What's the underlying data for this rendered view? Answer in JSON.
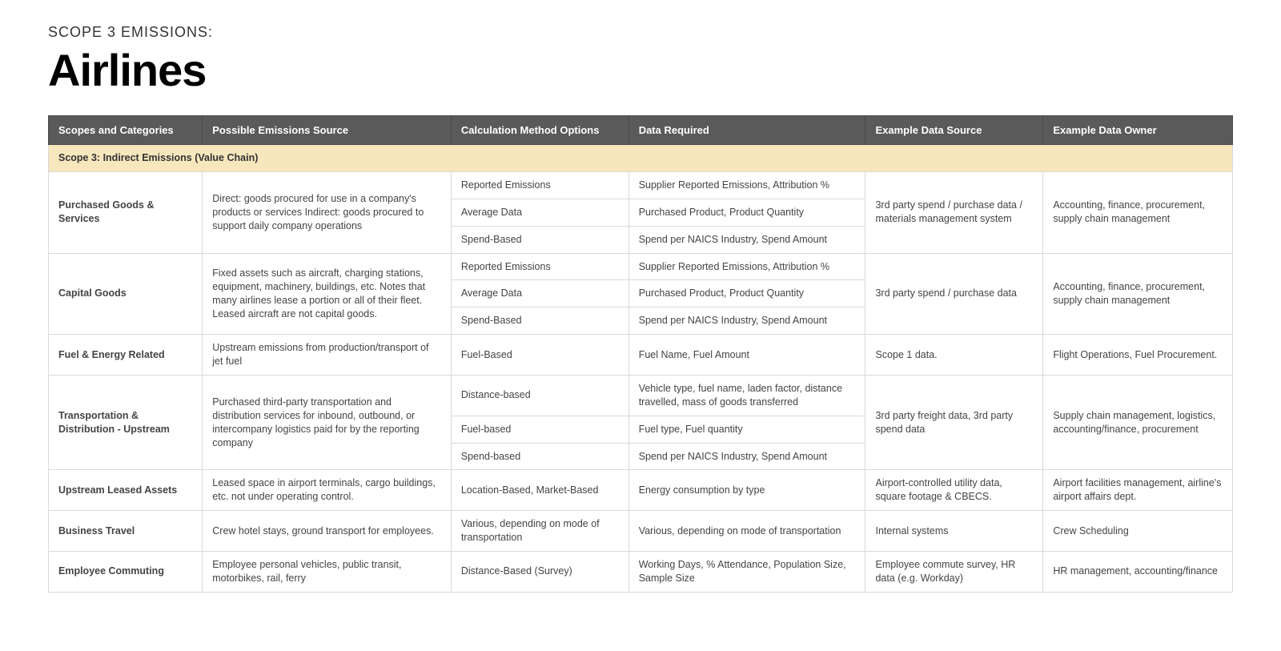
{
  "header": {
    "eyebrow": "SCOPE 3 EMISSIONS:",
    "title": "Airlines"
  },
  "table": {
    "columns": [
      "Scopes and Categories",
      "Possible Emissions Source",
      "Calculation Method Options",
      "Data Required",
      "Example Data Source",
      "Example Data Owner"
    ],
    "section_label": "Scope 3: Indirect Emissions (Value Chain)",
    "colors": {
      "header_bg": "#5a5a5a",
      "header_text": "#ffffff",
      "section_bg": "#f6e7bd",
      "category_bg": "#f4f4f4",
      "border": "#d9d9d9",
      "body_text": "#444444"
    },
    "rows": [
      {
        "category": "Purchased Goods & Services",
        "source": "Direct: goods procured for use in a company's products or services Indirect: goods procured to support daily company operations",
        "methods": [
          {
            "method": "Reported Emissions",
            "data_required": "Supplier Reported Emissions, Attribution %"
          },
          {
            "method": "Average Data",
            "data_required": "Purchased Product, Product Quantity"
          },
          {
            "method": "Spend-Based",
            "data_required": "Spend per NAICS Industry, Spend Amount"
          }
        ],
        "example_source": "3rd party spend / purchase data / materials management system",
        "example_owner": "Accounting, finance,  procurement, supply chain management"
      },
      {
        "category": "Capital Goods",
        "source": "Fixed assets such as aircraft, charging stations, equipment, machinery, buildings, etc.  Notes that many airlines lease a portion or all of their fleet.  Leased aircraft are not capital goods.",
        "methods": [
          {
            "method": "Reported Emissions",
            "data_required": "Supplier Reported Emissions, Attribution %"
          },
          {
            "method": "Average Data",
            "data_required": "Purchased Product, Product Quantity"
          },
          {
            "method": "Spend-Based",
            "data_required": "Spend per NAICS Industry, Spend Amount"
          }
        ],
        "example_source": "3rd party spend / purchase data",
        "example_owner": "Accounting, finance,  procurement, supply chain management"
      },
      {
        "category": "Fuel & Energy Related",
        "source": "Upstream emissions from production/transport of jet fuel",
        "methods": [
          {
            "method": "Fuel-Based",
            "data_required": "Fuel Name, Fuel Amount"
          }
        ],
        "example_source": "Scope 1 data.",
        "example_owner": "Flight Operations, Fuel Procurement."
      },
      {
        "category": "Transportation & Distribution - Upstream",
        "source": "Purchased third-party transportation and distribution services for inbound, outbound, or intercompany logistics paid for by the reporting company",
        "methods": [
          {
            "method": "Distance-based",
            "data_required": "Vehicle type, fuel name, laden factor, distance travelled, mass of goods transferred"
          },
          {
            "method": "Fuel-based",
            "data_required": "Fuel type, Fuel quantity"
          },
          {
            "method": "Spend-based",
            "data_required": "Spend per NAICS Industry, Spend Amount"
          }
        ],
        "example_source": "3rd party freight data, 3rd party spend data",
        "example_owner": "Supply chain management, logistics, accounting/finance, procurement"
      },
      {
        "category": "Upstream Leased Assets",
        "source": "Leased space in airport terminals, cargo buildings, etc. not under operating control.",
        "methods": [
          {
            "method": "Location-Based, Market-Based",
            "data_required": "Energy consumption by type"
          }
        ],
        "example_source": "Airport-controlled utility data, square footage & CBECS.",
        "example_owner": "Airport facilities management, airline's airport affairs dept."
      },
      {
        "category": "Business Travel",
        "source": "Crew hotel stays, ground transport for employees.",
        "methods": [
          {
            "method": "Various, depending on mode of transportation",
            "data_required": "Various, depending on mode of transportation"
          }
        ],
        "example_source": "Internal systems",
        "example_owner": "Crew Scheduling"
      },
      {
        "category": "Employee Commuting",
        "source": "Employee personal vehicles, public transit, motorbikes, rail, ferry",
        "methods": [
          {
            "method": "Distance-Based (Survey)",
            "data_required": "Working Days, % Attendance, Population Size, Sample Size"
          }
        ],
        "example_source": "Employee commute survey, HR data (e.g. Workday)",
        "example_owner": "HR management, accounting/finance"
      }
    ]
  }
}
